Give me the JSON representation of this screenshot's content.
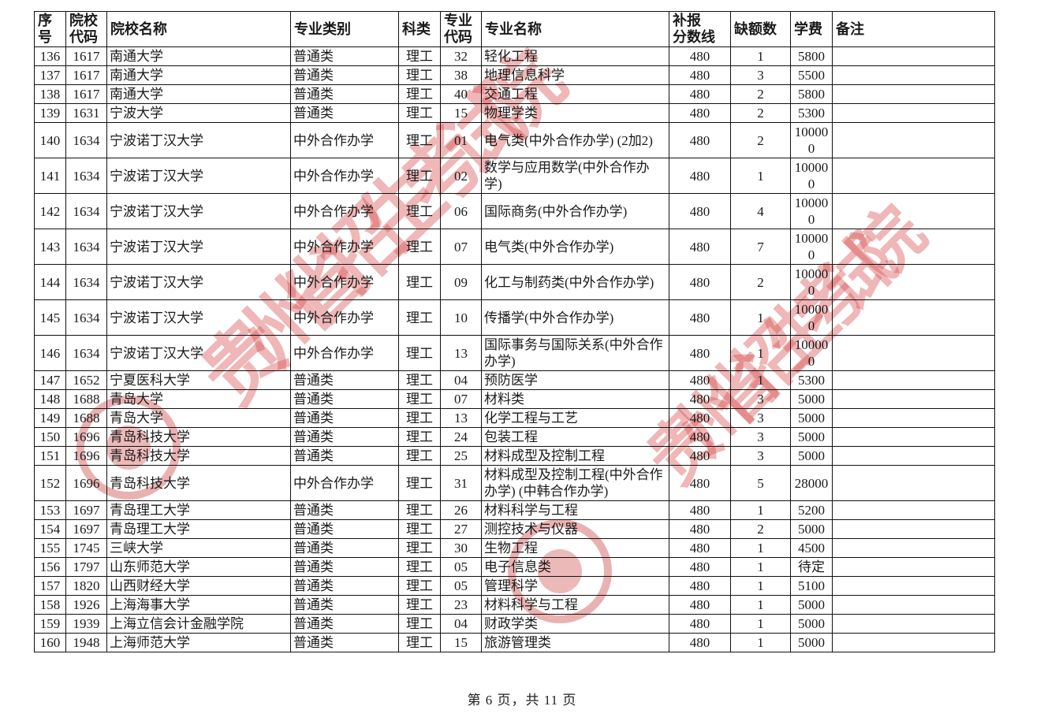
{
  "page": {
    "footer_text": "第 6 页，共 11 页",
    "watermark_text": "贵州省招生考试院",
    "watermark_color": "#d64c4c"
  },
  "table": {
    "columns": [
      "序\n号",
      "院校\n代码",
      "院校名称",
      "专业类别",
      "科类",
      "专业\n代码",
      "专业名称",
      "补报\n分数线",
      "缺额数",
      "学费",
      "备注"
    ],
    "rows": [
      [
        "136",
        "1617",
        "南通大学",
        "普通类",
        "理工",
        "32",
        "轻化工程",
        "480",
        "1",
        "5800",
        ""
      ],
      [
        "137",
        "1617",
        "南通大学",
        "普通类",
        "理工",
        "38",
        "地理信息科学",
        "480",
        "3",
        "5500",
        ""
      ],
      [
        "138",
        "1617",
        "南通大学",
        "普通类",
        "理工",
        "40",
        "交通工程",
        "480",
        "2",
        "5800",
        ""
      ],
      [
        "139",
        "1631",
        "宁波大学",
        "普通类",
        "理工",
        "15",
        "物理学类",
        "480",
        "2",
        "5300",
        ""
      ],
      [
        "140",
        "1634",
        "宁波诺丁汉大学",
        "中外合作办学",
        "理工",
        "01",
        "电气类(中外合作办学) (2加2)",
        "480",
        "2",
        "100000",
        ""
      ],
      [
        "141",
        "1634",
        "宁波诺丁汉大学",
        "中外合作办学",
        "理工",
        "02",
        "数学与应用数学(中外合作办学)",
        "480",
        "1",
        "100000",
        ""
      ],
      [
        "142",
        "1634",
        "宁波诺丁汉大学",
        "中外合作办学",
        "理工",
        "06",
        "国际商务(中外合作办学)",
        "480",
        "4",
        "100000",
        ""
      ],
      [
        "143",
        "1634",
        "宁波诺丁汉大学",
        "中外合作办学",
        "理工",
        "07",
        "电气类(中外合作办学)",
        "480",
        "7",
        "100000",
        ""
      ],
      [
        "144",
        "1634",
        "宁波诺丁汉大学",
        "中外合作办学",
        "理工",
        "09",
        "化工与制药类(中外合作办学)",
        "480",
        "2",
        "100000",
        ""
      ],
      [
        "145",
        "1634",
        "宁波诺丁汉大学",
        "中外合作办学",
        "理工",
        "10",
        "传播学(中外合作办学)",
        "480",
        "1",
        "100000",
        ""
      ],
      [
        "146",
        "1634",
        "宁波诺丁汉大学",
        "中外合作办学",
        "理工",
        "13",
        "国际事务与国际关系(中外合作办学)",
        "480",
        "1",
        "100000",
        ""
      ],
      [
        "147",
        "1652",
        "宁夏医科大学",
        "普通类",
        "理工",
        "04",
        "预防医学",
        "480",
        "1",
        "5300",
        ""
      ],
      [
        "148",
        "1688",
        "青岛大学",
        "普通类",
        "理工",
        "07",
        "材料类",
        "480",
        "3",
        "5000",
        ""
      ],
      [
        "149",
        "1688",
        "青岛大学",
        "普通类",
        "理工",
        "13",
        "化学工程与工艺",
        "480",
        "3",
        "5000",
        ""
      ],
      [
        "150",
        "1696",
        "青岛科技大学",
        "普通类",
        "理工",
        "24",
        "包装工程",
        "480",
        "3",
        "5000",
        ""
      ],
      [
        "151",
        "1696",
        "青岛科技大学",
        "普通类",
        "理工",
        "25",
        "材料成型及控制工程",
        "480",
        "3",
        "5000",
        ""
      ],
      [
        "152",
        "1696",
        "青岛科技大学",
        "中外合作办学",
        "理工",
        "31",
        "材料成型及控制工程(中外合作办学) (中韩合作办学)",
        "480",
        "5",
        "28000",
        ""
      ],
      [
        "153",
        "1697",
        "青岛理工大学",
        "普通类",
        "理工",
        "26",
        "材料科学与工程",
        "480",
        "1",
        "5200",
        ""
      ],
      [
        "154",
        "1697",
        "青岛理工大学",
        "普通类",
        "理工",
        "27",
        "测控技术与仪器",
        "480",
        "2",
        "5000",
        ""
      ],
      [
        "155",
        "1745",
        "三峡大学",
        "普通类",
        "理工",
        "30",
        "生物工程",
        "480",
        "1",
        "4500",
        ""
      ],
      [
        "156",
        "1797",
        "山东师范大学",
        "普通类",
        "理工",
        "05",
        "电子信息类",
        "480",
        "1",
        "待定",
        ""
      ],
      [
        "157",
        "1820",
        "山西财经大学",
        "普通类",
        "理工",
        "05",
        "管理科学",
        "480",
        "1",
        "5100",
        ""
      ],
      [
        "158",
        "1926",
        "上海海事大学",
        "普通类",
        "理工",
        "23",
        "材料科学与工程",
        "480",
        "1",
        "5000",
        ""
      ],
      [
        "159",
        "1939",
        "上海立信会计金融学院",
        "普通类",
        "理工",
        "04",
        "财政学类",
        "480",
        "1",
        "5000",
        ""
      ],
      [
        "160",
        "1948",
        "上海师范大学",
        "普通类",
        "理工",
        "15",
        "旅游管理类",
        "480",
        "1",
        "5000",
        ""
      ]
    ]
  }
}
